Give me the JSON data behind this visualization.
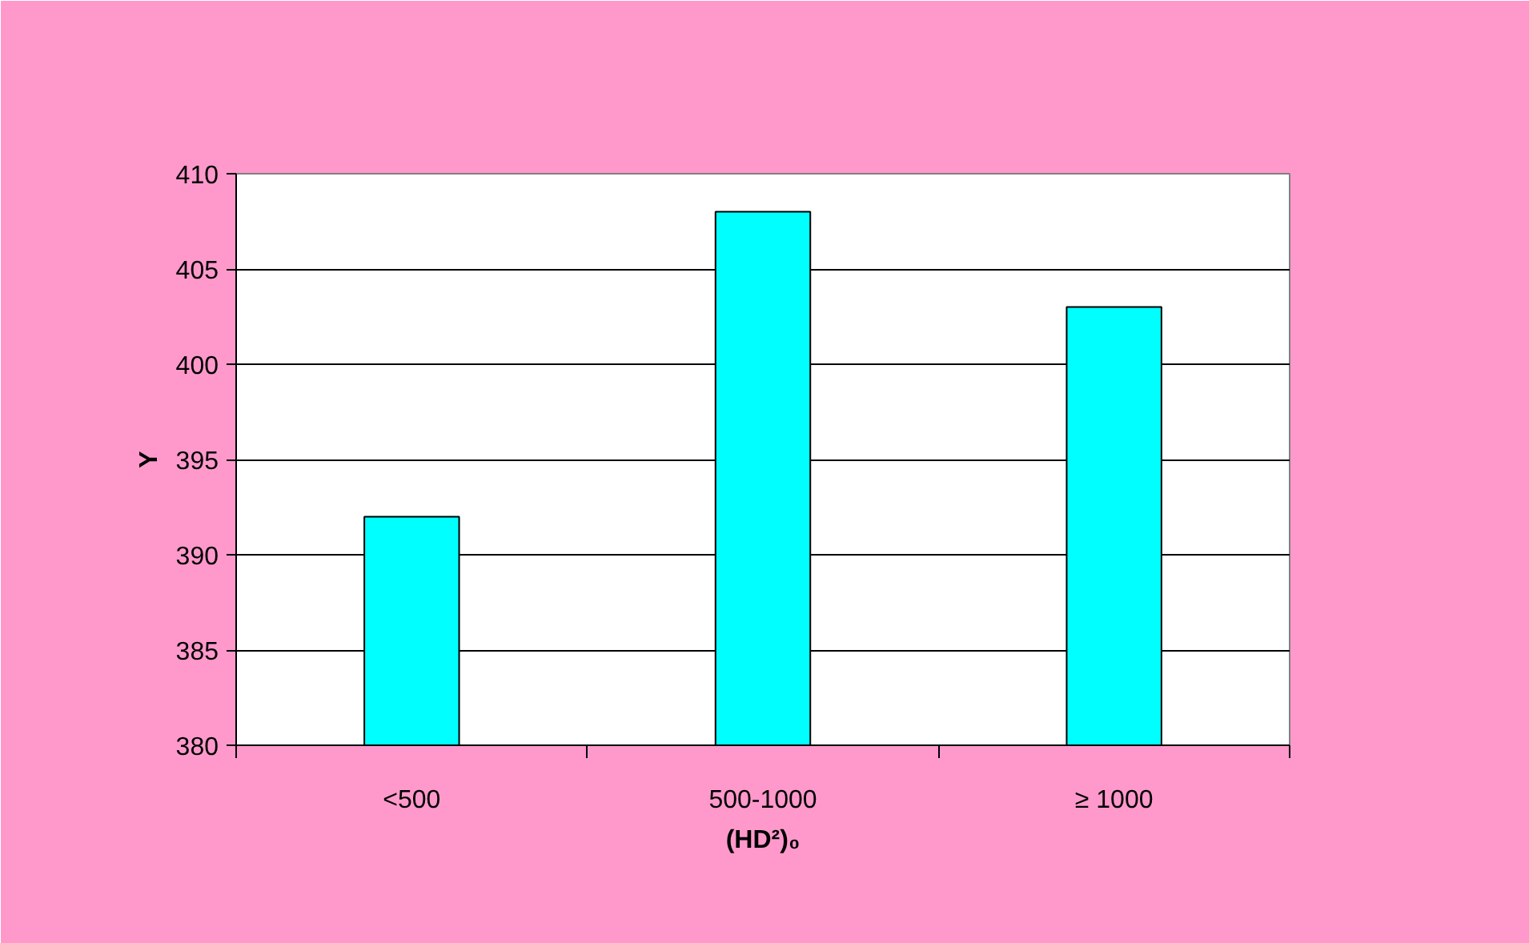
{
  "chart_data": {
    "type": "bar",
    "xlabel": "(HD²)₀",
    "ylabel": "Y",
    "categories": [
      "<500",
      "500-1000",
      "≥ 1000"
    ],
    "values": [
      392,
      408,
      403
    ],
    "color": "#00ffff",
    "ylim": [
      380,
      410
    ],
    "yticks": [
      380,
      385,
      390,
      395,
      400,
      405,
      410
    ],
    "grid": "y"
  }
}
